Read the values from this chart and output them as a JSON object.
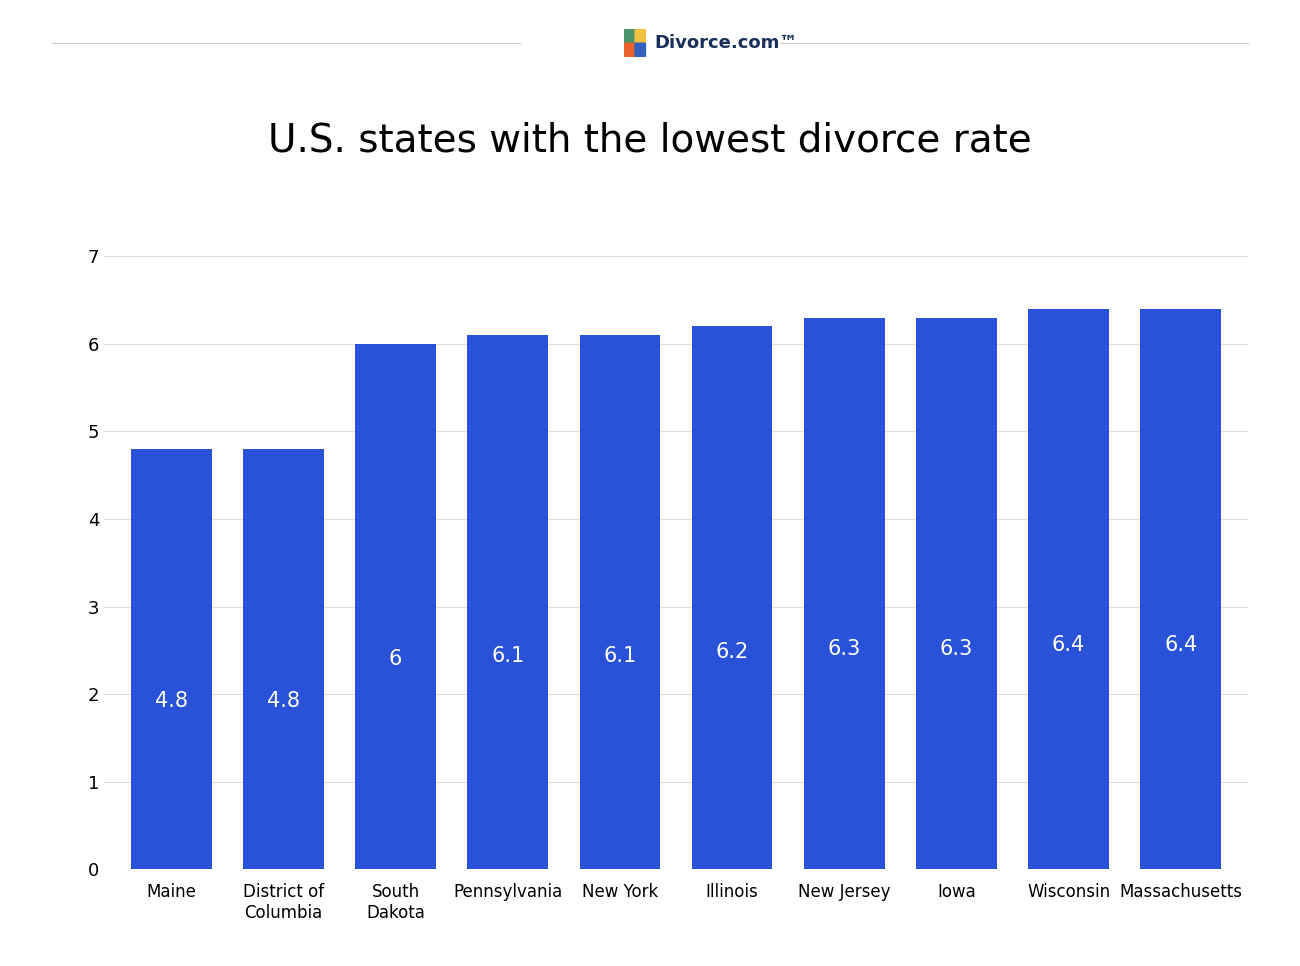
{
  "categories": [
    "Maine",
    "District of\nColumbia",
    "South\nDakota",
    "Pennsylvania",
    "New York",
    "Illinois",
    "New Jersey",
    "Iowa",
    "Wisconsin",
    "Massachusetts"
  ],
  "values": [
    4.8,
    4.8,
    6.0,
    6.1,
    6.1,
    6.2,
    6.3,
    6.3,
    6.4,
    6.4
  ],
  "labels": [
    "4.8",
    "4.8",
    "6",
    "6.1",
    "6.1",
    "6.2",
    "6.3",
    "6.3",
    "6.4",
    "6.4"
  ],
  "bar_color": "#2952d9",
  "title": "U.S. states with the lowest divorce rate",
  "title_fontsize": 28,
  "ylabel_ticks": [
    0,
    1,
    2,
    3,
    4,
    5,
    6,
    7
  ],
  "ylim": [
    0,
    7.5
  ],
  "background_color": "#ffffff",
  "label_fontsize": 15,
  "tick_fontsize": 12,
  "brand_color": "#1a2e5a",
  "line_color": "#cccccc",
  "grid_color": "#dddddd"
}
